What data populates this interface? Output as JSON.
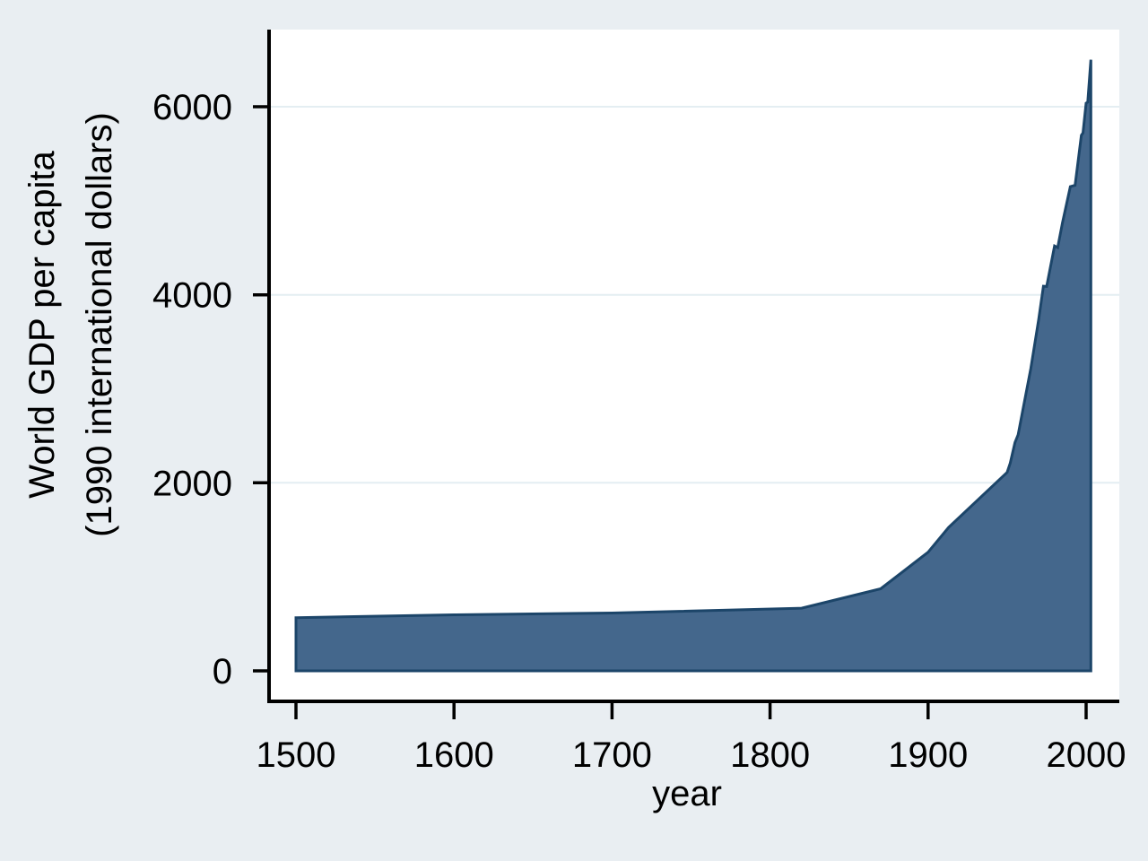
{
  "chart_data": {
    "type": "area",
    "title": "",
    "xlabel": "year",
    "ylabel": "World GDP per capita (1990 international dollars)",
    "ylabel_lines": [
      "World GDP per capita",
      "(1990 international dollars)"
    ],
    "x_ticks": [
      1500,
      1600,
      1700,
      1800,
      1900,
      2000
    ],
    "y_ticks": [
      0,
      2000,
      4000,
      6000
    ],
    "y_gridlines": [
      2000,
      4000,
      6000
    ],
    "xlim": [
      1483,
      2021
    ],
    "ylim": [
      0,
      6800
    ],
    "grid": true,
    "legend": "none",
    "series": [
      {
        "name": "World GDP per capita (1990 international dollars)",
        "points": [
          [
            1500,
            566
          ],
          [
            1600,
            596
          ],
          [
            1700,
            615
          ],
          [
            1820,
            667
          ],
          [
            1870,
            873
          ],
          [
            1900,
            1262
          ],
          [
            1913,
            1526
          ],
          [
            1950,
            2111
          ],
          [
            1952,
            2210
          ],
          [
            1955,
            2430
          ],
          [
            1957,
            2512
          ],
          [
            1960,
            2777
          ],
          [
            1965,
            3215
          ],
          [
            1970,
            3736
          ],
          [
            1973,
            4091
          ],
          [
            1975,
            4088
          ],
          [
            1980,
            4520
          ],
          [
            1982,
            4502
          ],
          [
            1985,
            4764
          ],
          [
            1990,
            5150
          ],
          [
            1993,
            5164
          ],
          [
            1997,
            5697
          ],
          [
            1998,
            5721
          ],
          [
            2000,
            6038
          ],
          [
            2001,
            6049
          ],
          [
            2003,
            6500
          ]
        ]
      }
    ],
    "colors": {
      "background": "#e9eef2",
      "plot_background": "#ffffff",
      "gridline": "#e4eef2",
      "axis": "#000000",
      "text": "#000000",
      "area_fill": "#44678c",
      "area_stroke": "#1c4569"
    }
  }
}
